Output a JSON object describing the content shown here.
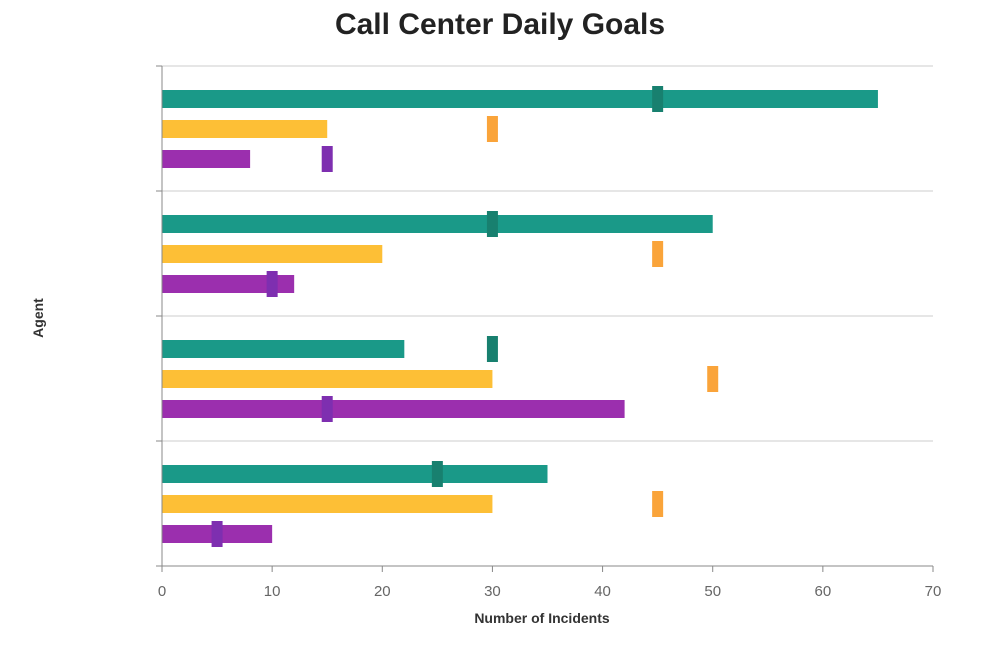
{
  "chart_data": {
    "type": "bar",
    "orientation": "horizontal",
    "title": "Call Center Daily Goals",
    "xlabel": "Number of Incidents",
    "ylabel": "Agent",
    "xlim": [
      0,
      70
    ],
    "xticks": [
      0,
      10,
      20,
      30,
      40,
      50,
      60,
      70
    ],
    "grid": true,
    "legend": "none",
    "group_count": 4,
    "series": [
      {
        "color": "#1a9988",
        "target_color": "#18806f",
        "values": [
          65,
          50,
          22,
          35
        ],
        "targets": [
          45,
          30,
          30,
          25
        ]
      },
      {
        "color": "#fdbf36",
        "target_color": "#faa43a",
        "values": [
          15,
          20,
          30,
          30
        ],
        "targets": [
          30,
          45,
          50,
          45
        ]
      },
      {
        "color": "#9b2fae",
        "target_color": "#7e2fb0",
        "values": [
          8,
          12,
          42,
          10
        ],
        "targets": [
          15,
          10,
          15,
          5
        ]
      }
    ]
  }
}
